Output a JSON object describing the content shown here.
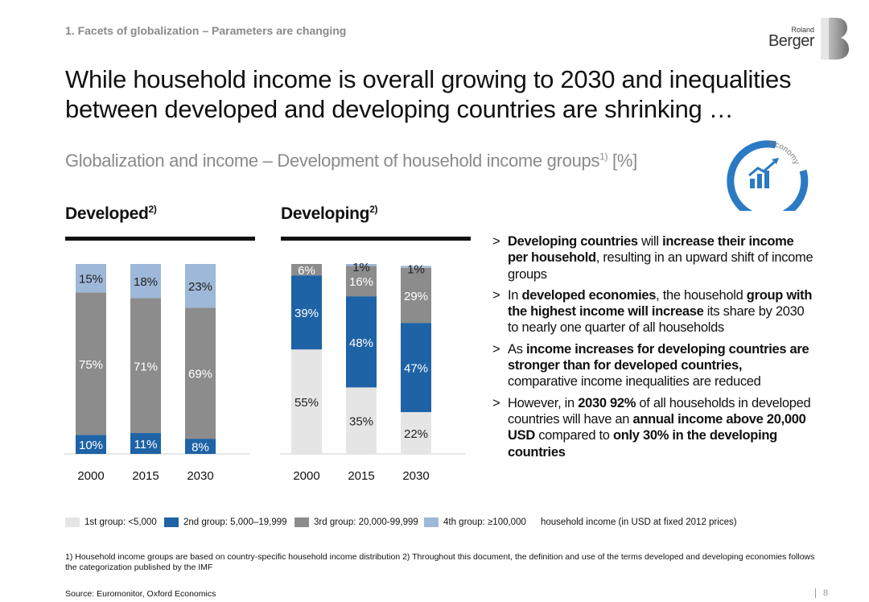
{
  "header": {
    "section_label": "1. Facets of globalization – Parameters are changing",
    "logo_top": "Roland",
    "logo_bottom": "Berger"
  },
  "title": "While household income is overall growing to 2030 and inequalities between developed and developing countries are shrinking …",
  "subtitle": {
    "text": "Globalization and income – Development of household income groups",
    "footnote_ref": "1)",
    "unit": " [%]"
  },
  "badge": {
    "label": "Economy",
    "icon": "bar-chart-trend-icon"
  },
  "colors": {
    "group1": "#e5e5e5",
    "group2": "#1e63a6",
    "group3": "#8c8c8c",
    "group4": "#9eb8d9",
    "badge_blue": "#2a7ac4"
  },
  "chart_data": [
    {
      "type": "bar",
      "stacked": true,
      "title": "Developed",
      "title_ref": "2)",
      "categories": [
        "2000",
        "2015",
        "2030"
      ],
      "series": [
        {
          "name": "1st group: <5,000",
          "values": [
            0,
            0,
            0
          ]
        },
        {
          "name": "2nd group: 5,000–19,999",
          "values": [
            10,
            11,
            8
          ]
        },
        {
          "name": "3rd group: 20,000-99,999",
          "values": [
            75,
            71,
            69
          ]
        },
        {
          "name": "4th group: ≥100,000",
          "values": [
            15,
            18,
            23
          ]
        }
      ],
      "ylim": [
        0,
        100
      ]
    },
    {
      "type": "bar",
      "stacked": true,
      "title": "Developing",
      "title_ref": "2)",
      "categories": [
        "2000",
        "2015",
        "2030"
      ],
      "series": [
        {
          "name": "1st group: <5,000",
          "values": [
            55,
            35,
            22
          ]
        },
        {
          "name": "2nd group: 5,000–19,999",
          "values": [
            39,
            48,
            47
          ]
        },
        {
          "name": "3rd group: 20,000-99,999",
          "values": [
            6,
            16,
            29
          ]
        },
        {
          "name": "4th group: ≥100,000",
          "values": [
            0,
            1,
            1
          ]
        }
      ],
      "ylim": [
        0,
        100
      ]
    }
  ],
  "legend": {
    "items": [
      {
        "label": "1st group: <5,000"
      },
      {
        "label": "2nd group: 5,000–19,999"
      },
      {
        "label": "3rd group: 20,000-99,999"
      },
      {
        "label": "4th group: ≥100,000"
      }
    ],
    "note": "household income (in USD at fixed 2012 prices)"
  },
  "bullets": [
    {
      "segments": [
        {
          "text": "Developing countries",
          "bold": true
        },
        {
          "text": " will ",
          "bold": false
        },
        {
          "text": "increase their income per household",
          "bold": true
        },
        {
          "text": ", resulting in an upward shift of income groups",
          "bold": false
        }
      ]
    },
    {
      "segments": [
        {
          "text": "In ",
          "bold": false
        },
        {
          "text": "developed economies",
          "bold": true
        },
        {
          "text": ", the household ",
          "bold": false
        },
        {
          "text": "group with the highest income will increase",
          "bold": true
        },
        {
          "text": " its share by 2030 to nearly one quarter of all households",
          "bold": false
        }
      ]
    },
    {
      "segments": [
        {
          "text": "As ",
          "bold": false
        },
        {
          "text": "income increases for developing countries are stronger than for developed countries,",
          "bold": true
        },
        {
          "text": " comparative income inequalities are reduced",
          "bold": false
        }
      ]
    },
    {
      "segments": [
        {
          "text": "However, in ",
          "bold": false
        },
        {
          "text": "2030 92%",
          "bold": true
        },
        {
          "text": " of all households in developed countries will have an ",
          "bold": false
        },
        {
          "text": "annual income above 20,000 USD",
          "bold": true
        },
        {
          "text": " compared to ",
          "bold": false
        },
        {
          "text": "only 30% in the developing countries",
          "bold": true
        }
      ]
    }
  ],
  "bullet_marker": ">",
  "footnote": "1) Household income groups are based on country-specific household income distribution 2) Throughout this document, the definition and use of the terms developed and developing economies follows the categorization published by the IMF",
  "source": "Source: Euromonitor, Oxford Economics",
  "page_number": "8"
}
